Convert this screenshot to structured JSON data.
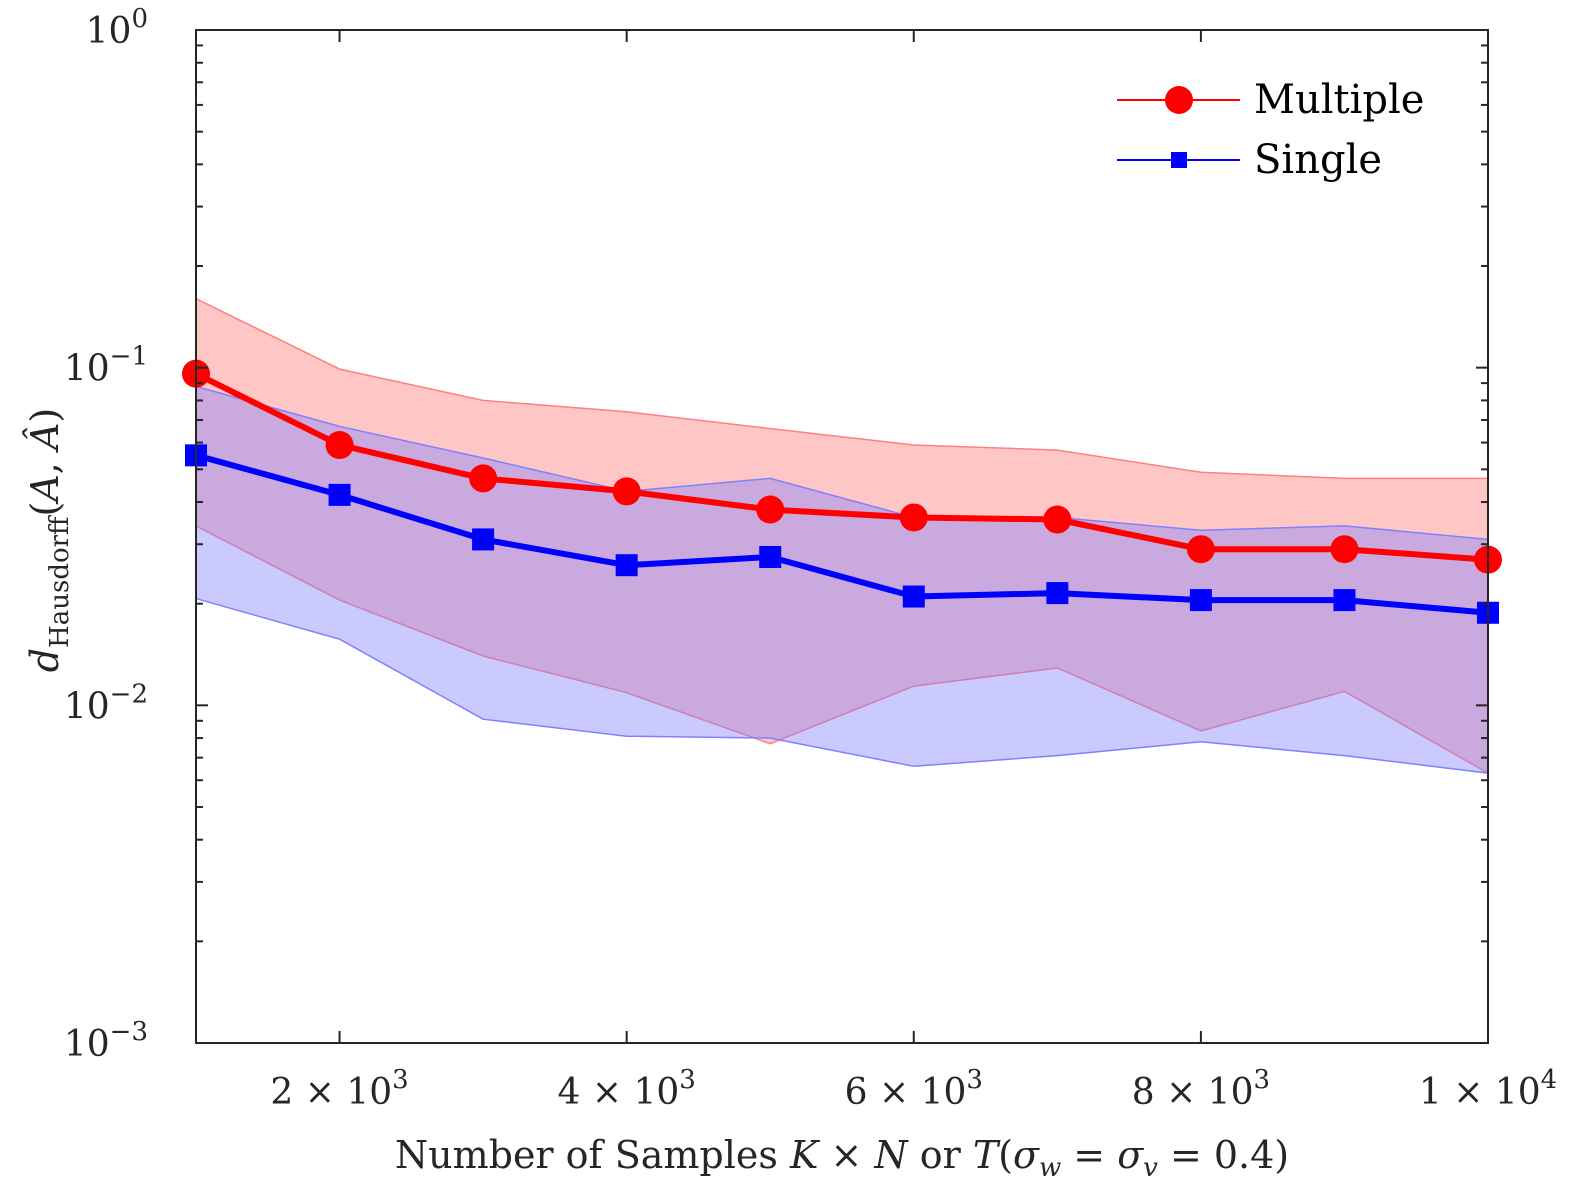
{
  "chart_data": {
    "type": "line",
    "xlabel": "Number of Samples K × N or T(σw = σv = 0.4)",
    "ylabel": "dHausdorff(A, Â)",
    "x": [
      1000,
      2000,
      3000,
      4000,
      5000,
      6000,
      7000,
      8000,
      9000,
      10000
    ],
    "xlim": [
      1000,
      10000
    ],
    "ylim": [
      0.001,
      1
    ],
    "yscale": "log",
    "grid": false,
    "legend_position": "top-right",
    "x_ticks": [
      {
        "value": 2000,
        "mantissa": "2",
        "exponent": "3"
      },
      {
        "value": 4000,
        "mantissa": "4",
        "exponent": "3"
      },
      {
        "value": 6000,
        "mantissa": "6",
        "exponent": "3"
      },
      {
        "value": 8000,
        "mantissa": "8",
        "exponent": "3"
      },
      {
        "value": 10000,
        "mantissa": "1",
        "exponent": "4"
      }
    ],
    "y_ticks": [
      {
        "value": 1,
        "base": "10",
        "exponent": "0"
      },
      {
        "value": 0.1,
        "base": "10",
        "exponent": "−1"
      },
      {
        "value": 0.01,
        "base": "10",
        "exponent": "−2"
      },
      {
        "value": 0.001,
        "base": "10",
        "exponent": "−3"
      }
    ],
    "series": [
      {
        "name": "Multiple",
        "color": "#ff0000",
        "band_color": "#ff8080",
        "marker": "circle",
        "values": [
          0.096,
          0.059,
          0.047,
          0.043,
          0.038,
          0.036,
          0.0355,
          0.029,
          0.029,
          0.027
        ],
        "upper": [
          0.16,
          0.099,
          0.08,
          0.074,
          0.066,
          0.059,
          0.057,
          0.049,
          0.047,
          0.047
        ],
        "lower": [
          0.034,
          0.0205,
          0.014,
          0.0109,
          0.0077,
          0.0114,
          0.0129,
          0.0084,
          0.011,
          0.0063
        ]
      },
      {
        "name": "Single",
        "color": "#0000ff",
        "band_color": "#8080ff",
        "marker": "square",
        "values": [
          0.055,
          0.042,
          0.031,
          0.026,
          0.0275,
          0.021,
          0.0215,
          0.0205,
          0.0205,
          0.0188
        ],
        "upper": [
          0.088,
          0.067,
          0.054,
          0.043,
          0.047,
          0.036,
          0.036,
          0.033,
          0.034,
          0.031
        ],
        "lower": [
          0.0207,
          0.0157,
          0.0091,
          0.0081,
          0.008,
          0.0066,
          0.0071,
          0.0078,
          0.0071,
          0.0063
        ]
      }
    ]
  }
}
